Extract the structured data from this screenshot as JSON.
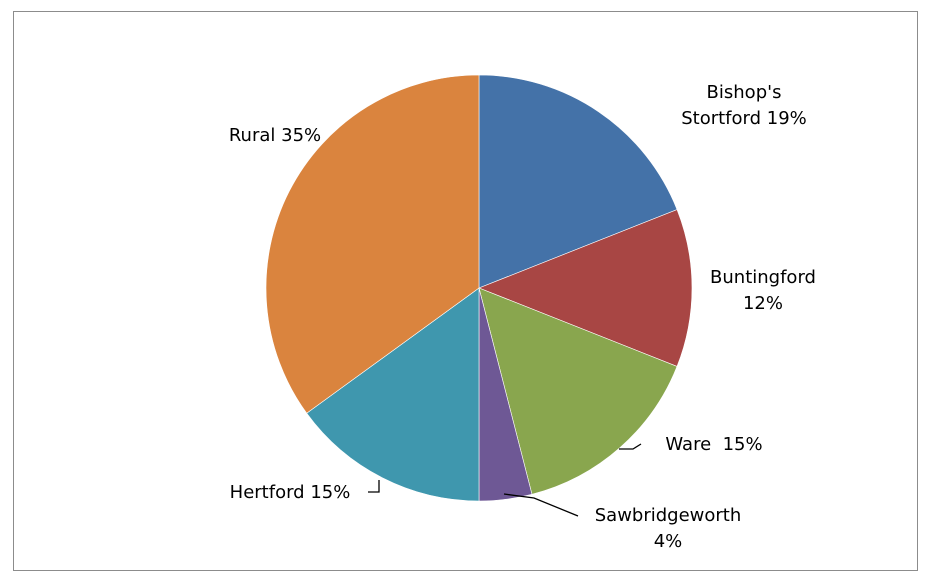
{
  "chart_data": {
    "type": "pie",
    "title": "",
    "slices": [
      {
        "name": "Bishop's Stortford",
        "value": 19,
        "label_lines": [
          "Bishop's",
          "Stortford 19%"
        ],
        "color": "#4472A8"
      },
      {
        "name": "Buntingford",
        "value": 12,
        "label_lines": [
          "Buntingford",
          "12%"
        ],
        "color": "#A84644"
      },
      {
        "name": "Ware",
        "value": 15,
        "label_lines": [
          "Ware  15%"
        ],
        "color": "#89A64E"
      },
      {
        "name": "Sawbridgeworth",
        "value": 4,
        "label_lines": [
          "Sawbridgeworth",
          "4%"
        ],
        "color": "#6E5895"
      },
      {
        "name": "Hertford",
        "value": 15,
        "label_lines": [
          "Hertford 15%"
        ],
        "color": "#3F97AE"
      },
      {
        "name": "Rural",
        "value": 35,
        "label_lines": [
          "Rural 35%"
        ],
        "color": "#DA843E"
      }
    ],
    "start_angle_deg": 0,
    "direction": "clockwise",
    "legend": "none"
  }
}
